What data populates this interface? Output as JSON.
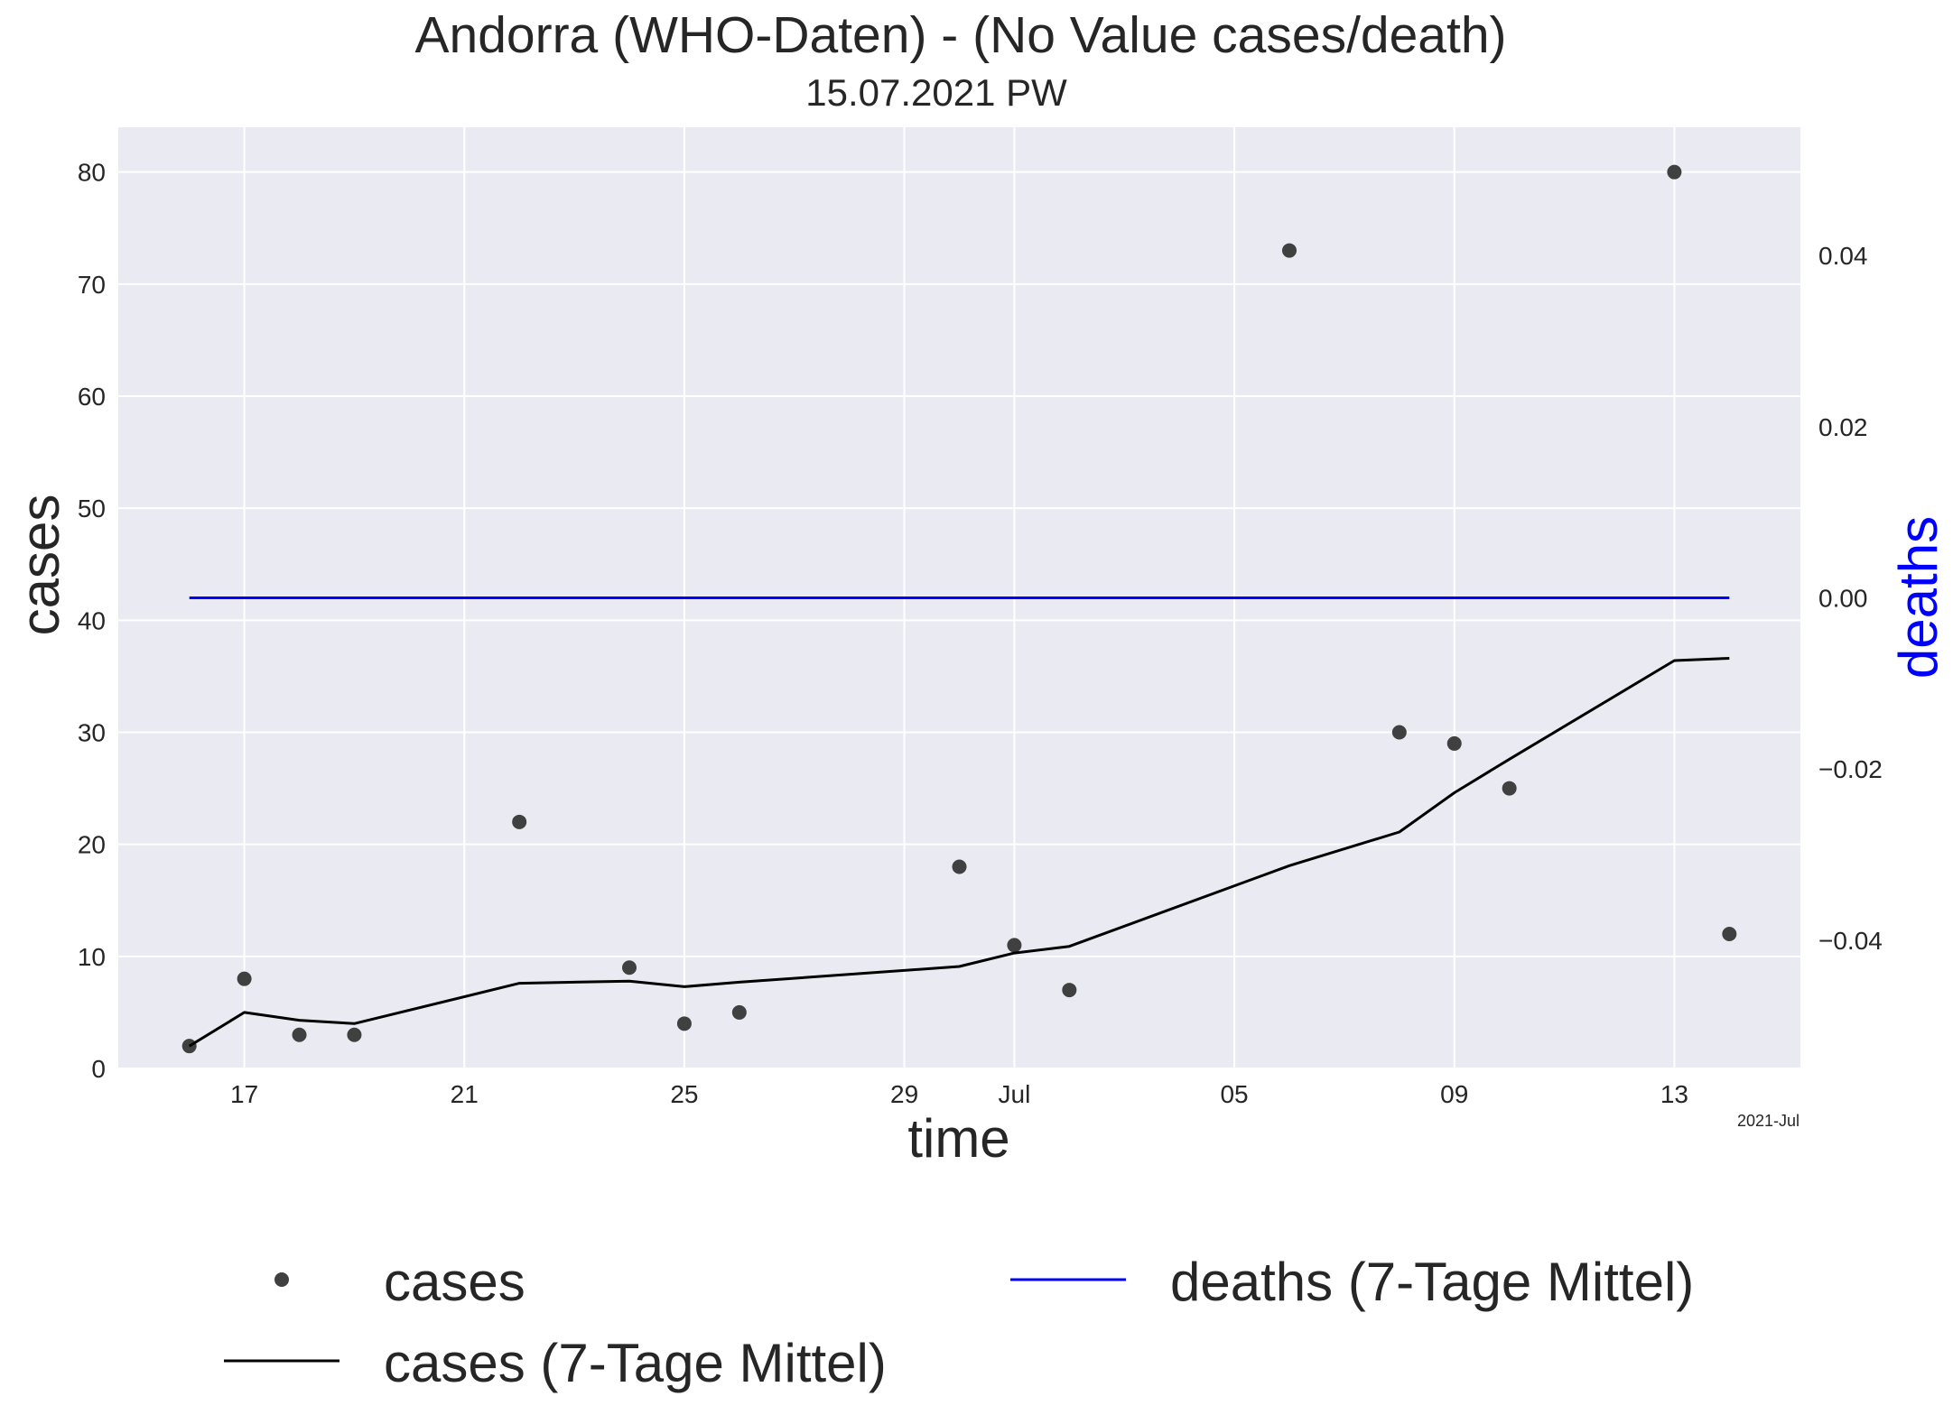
{
  "chart_data": {
    "type": "line",
    "title": "Andorra (WHO-Daten) - (No Value cases/death)",
    "subtitle": "15.07.2021 PW",
    "xlabel": "time",
    "ylabel": "cases",
    "y2label": "deaths",
    "x_offset_label": "2021-Jul",
    "xlim": [
      "2021-06-14T17:00",
      "2021-07-15T07:00"
    ],
    "ylim": [
      0,
      84
    ],
    "y2lim": [
      -0.055,
      0.055
    ],
    "x_ticks": [
      {
        "date": "2021-06-17",
        "label": "17"
      },
      {
        "date": "2021-06-21",
        "label": "21"
      },
      {
        "date": "2021-06-25",
        "label": "25"
      },
      {
        "date": "2021-06-29",
        "label": "29"
      },
      {
        "date": "2021-07-01",
        "label": "Jul"
      },
      {
        "date": "2021-07-05",
        "label": "05"
      },
      {
        "date": "2021-07-09",
        "label": "09"
      },
      {
        "date": "2021-07-13",
        "label": "13"
      }
    ],
    "y_ticks": [
      0,
      10,
      20,
      30,
      40,
      50,
      60,
      70,
      80
    ],
    "y2_ticks": [
      {
        "value": 0.04,
        "label": "0.04"
      },
      {
        "value": 0.02,
        "label": "0.02"
      },
      {
        "value": 0.0,
        "label": "0.00"
      },
      {
        "value": -0.02,
        "label": "−0.02"
      },
      {
        "value": -0.04,
        "label": "−0.04"
      }
    ],
    "grid": true,
    "legend_position": "bottom",
    "series": [
      {
        "name": "cases",
        "kind": "scatter",
        "color": "#404040",
        "points": [
          {
            "x": "2021-06-16",
            "y": 2
          },
          {
            "x": "2021-06-17",
            "y": 8
          },
          {
            "x": "2021-06-18",
            "y": 3
          },
          {
            "x": "2021-06-19",
            "y": 3
          },
          {
            "x": "2021-06-22",
            "y": 22
          },
          {
            "x": "2021-06-24",
            "y": 9
          },
          {
            "x": "2021-06-25",
            "y": 4
          },
          {
            "x": "2021-06-26",
            "y": 5
          },
          {
            "x": "2021-06-30",
            "y": 18
          },
          {
            "x": "2021-07-01",
            "y": 11
          },
          {
            "x": "2021-07-02",
            "y": 7
          },
          {
            "x": "2021-07-06",
            "y": 73
          },
          {
            "x": "2021-07-08",
            "y": 30
          },
          {
            "x": "2021-07-09",
            "y": 29
          },
          {
            "x": "2021-07-10",
            "y": 25
          },
          {
            "x": "2021-07-13",
            "y": 80
          },
          {
            "x": "2021-07-14",
            "y": 12
          }
        ]
      },
      {
        "name": "cases (7-Tage Mittel)",
        "kind": "line",
        "color": "#000000",
        "points": [
          {
            "x": "2021-06-16",
            "y": 2.0
          },
          {
            "x": "2021-06-17",
            "y": 5.0
          },
          {
            "x": "2021-06-18",
            "y": 4.3
          },
          {
            "x": "2021-06-19",
            "y": 4.0
          },
          {
            "x": "2021-06-22",
            "y": 7.6
          },
          {
            "x": "2021-06-24",
            "y": 7.8
          },
          {
            "x": "2021-06-25",
            "y": 7.3
          },
          {
            "x": "2021-06-26",
            "y": 7.7
          },
          {
            "x": "2021-06-30",
            "y": 9.1
          },
          {
            "x": "2021-07-01",
            "y": 10.3
          },
          {
            "x": "2021-07-02",
            "y": 10.9
          },
          {
            "x": "2021-07-06",
            "y": 18.1
          },
          {
            "x": "2021-07-08",
            "y": 21.1
          },
          {
            "x": "2021-07-09",
            "y": 24.6
          },
          {
            "x": "2021-07-10",
            "y": 27.6
          },
          {
            "x": "2021-07-13",
            "y": 36.4
          },
          {
            "x": "2021-07-14",
            "y": 36.6
          }
        ]
      },
      {
        "name": "deaths (7-Tage Mittel)",
        "kind": "line",
        "axis": "right",
        "color": "#0000ff",
        "points": [
          {
            "x": "2021-06-16",
            "y": 0.0
          },
          {
            "x": "2021-07-14",
            "y": 0.0
          }
        ]
      }
    ]
  }
}
